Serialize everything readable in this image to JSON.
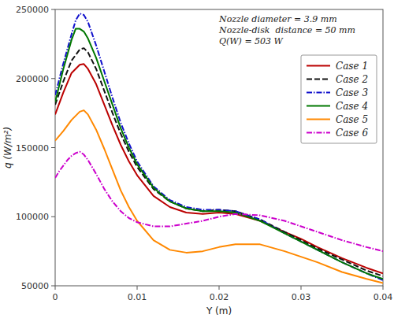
{
  "chart_data": {
    "type": "line",
    "annotation": "Nozzle diameter = 3.9 mm\nNozzle-disk  distance = 50 mm\nQ(W) = 503 W",
    "xlabel": "Y (m)",
    "ylabel": "q (W/m²)",
    "xlim": [
      0,
      0.04
    ],
    "ylim": [
      50000,
      250000
    ],
    "xticks": [
      0,
      0.01,
      0.02,
      0.03,
      0.04
    ],
    "yticks": [
      50000,
      100000,
      150000,
      200000,
      250000
    ],
    "grid": false,
    "legend": "upper right",
    "series": [
      {
        "name": "Case 1",
        "color": "#bb0000",
        "line_style": "solid",
        "x": [
          0.0,
          0.001,
          0.002,
          0.003,
          0.0035,
          0.004,
          0.005,
          0.006,
          0.007,
          0.008,
          0.009,
          0.01,
          0.012,
          0.014,
          0.016,
          0.018,
          0.02,
          0.022,
          0.025,
          0.028,
          0.03,
          0.032,
          0.035,
          0.038,
          0.04
        ],
        "values": [
          174000,
          190000,
          204000,
          210000,
          210500,
          207000,
          196000,
          181000,
          166000,
          152000,
          140000,
          130000,
          115000,
          107000,
          103000,
          102000,
          103000,
          102000,
          97000,
          89000,
          84000,
          78000,
          70000,
          63000,
          59000
        ]
      },
      {
        "name": "Case 2",
        "color": "#111111",
        "line_style": "dashed",
        "x": [
          0.0,
          0.001,
          0.002,
          0.003,
          0.0035,
          0.004,
          0.005,
          0.006,
          0.007,
          0.008,
          0.009,
          0.01,
          0.012,
          0.014,
          0.016,
          0.018,
          0.02,
          0.022,
          0.025,
          0.028,
          0.03,
          0.032,
          0.035,
          0.038,
          0.04
        ],
        "values": [
          181000,
          198000,
          213000,
          221000,
          222000,
          219000,
          207000,
          191000,
          175000,
          160000,
          147000,
          136000,
          120000,
          111000,
          106000,
          104000,
          105000,
          104000,
          98000,
          89000,
          83000,
          77000,
          69000,
          61000,
          57000
        ]
      },
      {
        "name": "Case 3",
        "color": "#1111cc",
        "line_style": "dashdot",
        "x": [
          0.0,
          0.001,
          0.002,
          0.0025,
          0.003,
          0.0035,
          0.004,
          0.005,
          0.006,
          0.007,
          0.008,
          0.009,
          0.01,
          0.012,
          0.014,
          0.016,
          0.018,
          0.02,
          0.022,
          0.025,
          0.028,
          0.03,
          0.032,
          0.035,
          0.038,
          0.04
        ],
        "values": [
          188000,
          211000,
          232000,
          242000,
          247000,
          246000,
          241000,
          224000,
          205000,
          186000,
          168000,
          153000,
          140000,
          122000,
          112000,
          107000,
          105000,
          105000,
          104000,
          98000,
          88000,
          82000,
          76000,
          67000,
          59000,
          54000
        ]
      },
      {
        "name": "Case 4",
        "color": "#007700",
        "line_style": "solid",
        "x": [
          0.0,
          0.001,
          0.002,
          0.0025,
          0.003,
          0.0035,
          0.004,
          0.005,
          0.006,
          0.007,
          0.008,
          0.009,
          0.01,
          0.012,
          0.014,
          0.016,
          0.018,
          0.02,
          0.022,
          0.025,
          0.028,
          0.03,
          0.032,
          0.035,
          0.038,
          0.04
        ],
        "values": [
          183000,
          207000,
          228000,
          236000,
          236000,
          234000,
          229000,
          215000,
          198000,
          181000,
          164000,
          150000,
          138000,
          121000,
          111000,
          106000,
          104000,
          104000,
          103000,
          97000,
          88000,
          82000,
          76000,
          67000,
          59000,
          55000
        ]
      },
      {
        "name": "Case 5",
        "color": "#ff8800",
        "line_style": "solid",
        "x": [
          0.0,
          0.001,
          0.002,
          0.003,
          0.0035,
          0.004,
          0.005,
          0.006,
          0.007,
          0.008,
          0.009,
          0.01,
          0.012,
          0.014,
          0.016,
          0.018,
          0.02,
          0.022,
          0.025,
          0.028,
          0.03,
          0.032,
          0.035,
          0.038,
          0.04
        ],
        "values": [
          155000,
          162000,
          170000,
          176000,
          177000,
          174000,
          163000,
          149000,
          134000,
          119000,
          107000,
          97000,
          83000,
          76000,
          74000,
          75000,
          78000,
          80000,
          80000,
          75000,
          71000,
          67000,
          60000,
          55000,
          52000
        ]
      },
      {
        "name": "Case 6",
        "color": "#cc00cc",
        "line_style": "dashdot",
        "x": [
          0.0,
          0.0005,
          0.001,
          0.0015,
          0.002,
          0.0025,
          0.003,
          0.0035,
          0.004,
          0.005,
          0.006,
          0.007,
          0.008,
          0.009,
          0.01,
          0.012,
          0.014,
          0.016,
          0.018,
          0.02,
          0.022,
          0.025,
          0.028,
          0.03,
          0.032,
          0.035,
          0.038,
          0.04
        ],
        "values": [
          128000,
          133000,
          137000,
          141000,
          144000,
          146000,
          147000,
          145000,
          141000,
          131000,
          120000,
          111000,
          104000,
          99000,
          96000,
          93000,
          93000,
          95000,
          97000,
          100000,
          102000,
          101000,
          97000,
          93000,
          89000,
          83000,
          78000,
          75000
        ]
      }
    ]
  }
}
